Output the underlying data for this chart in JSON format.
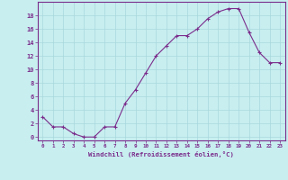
{
  "x": [
    0,
    1,
    2,
    3,
    4,
    5,
    6,
    7,
    8,
    9,
    10,
    11,
    12,
    13,
    14,
    15,
    16,
    17,
    18,
    19,
    20,
    21,
    22,
    23
  ],
  "y": [
    3.0,
    1.5,
    1.5,
    0.5,
    0.0,
    0.0,
    1.5,
    1.5,
    5.0,
    7.0,
    9.5,
    12.0,
    13.5,
    15.0,
    15.0,
    16.0,
    17.5,
    18.5,
    19.0,
    19.0,
    15.5,
    12.5,
    11.0,
    11.0
  ],
  "line_color": "#7B2D8B",
  "marker_color": "#7B2D8B",
  "bg_color": "#C8EEF0",
  "grid_color": "#A8D8DC",
  "xlabel": "Windchill (Refroidissement éolien,°C)",
  "ytick_values": [
    0,
    2,
    4,
    6,
    8,
    10,
    12,
    14,
    16,
    18
  ],
  "ylim": [
    -0.5,
    20.0
  ],
  "xlim": [
    -0.5,
    23.5
  ],
  "font_color": "#7B2D8B"
}
